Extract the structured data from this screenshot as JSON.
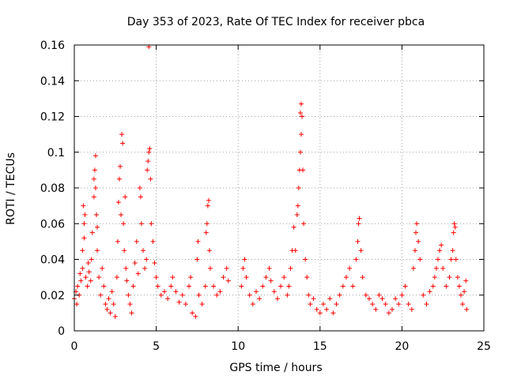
{
  "chart_data": {
    "type": "scatter",
    "title": "Day 353 of 2023, Rate Of TEC Index for receiver pbca",
    "xlabel": "GPS time / hours",
    "ylabel": "ROTI / TECUs",
    "xlim": [
      0,
      25
    ],
    "ylim": [
      0,
      0.16
    ],
    "xticks": [
      0,
      5,
      10,
      15,
      20,
      25
    ],
    "xtick_labels": [
      "0",
      "5",
      "10",
      "15",
      "20",
      "25"
    ],
    "yticks": [
      0,
      0.02,
      0.04,
      0.06,
      0.08,
      0.1,
      0.12,
      0.14,
      0.16
    ],
    "ytick_labels": [
      "0",
      "0.02",
      "0.04",
      "0.06",
      "0.08",
      "0.1",
      "0.12",
      "0.14",
      "0.16"
    ],
    "grid": true,
    "marker": "+",
    "color": "#ff0000",
    "series": [
      {
        "name": "ROTI",
        "points": [
          [
            0.0,
            0.018
          ],
          [
            0.1,
            0.022
          ],
          [
            0.15,
            0.015
          ],
          [
            0.2,
            0.025
          ],
          [
            0.3,
            0.02
          ],
          [
            0.35,
            0.032
          ],
          [
            0.4,
            0.028
          ],
          [
            0.5,
            0.035
          ],
          [
            0.5,
            0.045
          ],
          [
            0.55,
            0.07
          ],
          [
            0.6,
            0.06
          ],
          [
            0.6,
            0.052
          ],
          [
            0.65,
            0.065
          ],
          [
            0.7,
            0.03
          ],
          [
            0.8,
            0.025
          ],
          [
            0.85,
            0.038
          ],
          [
            0.9,
            0.033
          ],
          [
            1.0,
            0.028
          ],
          [
            1.05,
            0.04
          ],
          [
            1.1,
            0.055
          ],
          [
            1.2,
            0.075
          ],
          [
            1.2,
            0.085
          ],
          [
            1.25,
            0.09
          ],
          [
            1.3,
            0.098
          ],
          [
            1.3,
            0.08
          ],
          [
            1.35,
            0.065
          ],
          [
            1.4,
            0.058
          ],
          [
            1.4,
            0.045
          ],
          [
            1.5,
            0.03
          ],
          [
            1.6,
            0.02
          ],
          [
            1.7,
            0.035
          ],
          [
            1.8,
            0.025
          ],
          [
            1.9,
            0.015
          ],
          [
            2.0,
            0.012
          ],
          [
            2.1,
            0.018
          ],
          [
            2.2,
            0.01
          ],
          [
            2.3,
            0.022
          ],
          [
            2.4,
            0.015
          ],
          [
            2.5,
            0.008
          ],
          [
            2.6,
            0.03
          ],
          [
            2.65,
            0.05
          ],
          [
            2.7,
            0.072
          ],
          [
            2.75,
            0.085
          ],
          [
            2.8,
            0.092
          ],
          [
            2.85,
            0.065
          ],
          [
            2.9,
            0.11
          ],
          [
            2.95,
            0.105
          ],
          [
            3.0,
            0.06
          ],
          [
            3.05,
            0.045
          ],
          [
            3.1,
            0.075
          ],
          [
            3.15,
            0.035
          ],
          [
            3.2,
            0.028
          ],
          [
            3.3,
            0.02
          ],
          [
            3.4,
            0.015
          ],
          [
            3.5,
            0.01
          ],
          [
            3.6,
            0.025
          ],
          [
            3.7,
            0.038
          ],
          [
            3.8,
            0.05
          ],
          [
            3.9,
            0.032
          ],
          [
            4.0,
            0.08
          ],
          [
            4.05,
            0.075
          ],
          [
            4.1,
            0.06
          ],
          [
            4.2,
            0.045
          ],
          [
            4.3,
            0.035
          ],
          [
            4.4,
            0.04
          ],
          [
            4.45,
            0.09
          ],
          [
            4.5,
            0.095
          ],
          [
            4.55,
            0.1
          ],
          [
            4.6,
            0.102
          ],
          [
            4.65,
            0.085
          ],
          [
            4.55,
            0.159
          ],
          [
            4.7,
            0.06
          ],
          [
            4.8,
            0.05
          ],
          [
            4.9,
            0.038
          ],
          [
            5.0,
            0.03
          ],
          [
            5.1,
            0.025
          ],
          [
            5.3,
            0.02
          ],
          [
            5.5,
            0.022
          ],
          [
            5.7,
            0.018
          ],
          [
            5.9,
            0.025
          ],
          [
            6.0,
            0.03
          ],
          [
            6.2,
            0.022
          ],
          [
            6.4,
            0.016
          ],
          [
            6.6,
            0.02
          ],
          [
            6.8,
            0.015
          ],
          [
            7.0,
            0.025
          ],
          [
            7.1,
            0.03
          ],
          [
            7.2,
            0.01
          ],
          [
            7.4,
            0.008
          ],
          [
            7.5,
            0.04
          ],
          [
            7.55,
            0.05
          ],
          [
            7.6,
            0.02
          ],
          [
            7.8,
            0.015
          ],
          [
            8.0,
            0.025
          ],
          [
            8.05,
            0.055
          ],
          [
            8.1,
            0.06
          ],
          [
            8.15,
            0.07
          ],
          [
            8.2,
            0.073
          ],
          [
            8.25,
            0.045
          ],
          [
            8.3,
            0.035
          ],
          [
            8.5,
            0.025
          ],
          [
            8.7,
            0.02
          ],
          [
            8.9,
            0.022
          ],
          [
            9.1,
            0.03
          ],
          [
            9.3,
            0.035
          ],
          [
            9.4,
            0.028
          ],
          [
            10.2,
            0.025
          ],
          [
            10.3,
            0.035
          ],
          [
            10.4,
            0.04
          ],
          [
            10.5,
            0.03
          ],
          [
            10.7,
            0.02
          ],
          [
            10.9,
            0.015
          ],
          [
            11.1,
            0.022
          ],
          [
            11.3,
            0.018
          ],
          [
            11.5,
            0.025
          ],
          [
            11.7,
            0.03
          ],
          [
            11.9,
            0.035
          ],
          [
            12.0,
            0.028
          ],
          [
            12.2,
            0.022
          ],
          [
            12.4,
            0.018
          ],
          [
            12.6,
            0.025
          ],
          [
            12.8,
            0.03
          ],
          [
            13.0,
            0.02
          ],
          [
            13.1,
            0.025
          ],
          [
            13.2,
            0.035
          ],
          [
            13.3,
            0.045
          ],
          [
            13.4,
            0.058
          ],
          [
            13.5,
            0.045
          ],
          [
            13.6,
            0.065
          ],
          [
            13.65,
            0.07
          ],
          [
            13.7,
            0.08
          ],
          [
            13.75,
            0.09
          ],
          [
            13.8,
            0.1
          ],
          [
            13.85,
            0.11
          ],
          [
            13.8,
            0.122
          ],
          [
            13.85,
            0.127
          ],
          [
            13.9,
            0.12
          ],
          [
            13.95,
            0.09
          ],
          [
            14.0,
            0.06
          ],
          [
            14.1,
            0.04
          ],
          [
            14.2,
            0.03
          ],
          [
            14.3,
            0.02
          ],
          [
            14.4,
            0.015
          ],
          [
            14.6,
            0.018
          ],
          [
            14.8,
            0.012
          ],
          [
            15.0,
            0.01
          ],
          [
            15.2,
            0.015
          ],
          [
            15.4,
            0.012
          ],
          [
            15.6,
            0.018
          ],
          [
            15.8,
            0.01
          ],
          [
            16.0,
            0.015
          ],
          [
            16.2,
            0.02
          ],
          [
            16.4,
            0.025
          ],
          [
            16.6,
            0.03
          ],
          [
            16.8,
            0.035
          ],
          [
            17.0,
            0.025
          ],
          [
            17.2,
            0.04
          ],
          [
            17.3,
            0.05
          ],
          [
            17.35,
            0.06
          ],
          [
            17.4,
            0.063
          ],
          [
            17.5,
            0.045
          ],
          [
            17.6,
            0.03
          ],
          [
            17.8,
            0.02
          ],
          [
            18.0,
            0.018
          ],
          [
            18.2,
            0.015
          ],
          [
            18.4,
            0.012
          ],
          [
            18.6,
            0.02
          ],
          [
            18.8,
            0.018
          ],
          [
            19.0,
            0.015
          ],
          [
            19.2,
            0.01
          ],
          [
            19.4,
            0.012
          ],
          [
            19.6,
            0.018
          ],
          [
            19.8,
            0.015
          ],
          [
            20.0,
            0.02
          ],
          [
            20.2,
            0.025
          ],
          [
            20.4,
            0.015
          ],
          [
            20.6,
            0.012
          ],
          [
            20.7,
            0.035
          ],
          [
            20.8,
            0.045
          ],
          [
            20.85,
            0.055
          ],
          [
            20.9,
            0.06
          ],
          [
            21.0,
            0.05
          ],
          [
            21.1,
            0.04
          ],
          [
            21.3,
            0.02
          ],
          [
            21.5,
            0.015
          ],
          [
            21.7,
            0.022
          ],
          [
            21.9,
            0.025
          ],
          [
            22.0,
            0.03
          ],
          [
            22.1,
            0.035
          ],
          [
            22.2,
            0.04
          ],
          [
            22.3,
            0.045
          ],
          [
            22.4,
            0.048
          ],
          [
            22.5,
            0.035
          ],
          [
            22.7,
            0.025
          ],
          [
            22.9,
            0.03
          ],
          [
            23.0,
            0.04
          ],
          [
            23.1,
            0.045
          ],
          [
            23.15,
            0.055
          ],
          [
            23.2,
            0.06
          ],
          [
            23.25,
            0.058
          ],
          [
            23.3,
            0.04
          ],
          [
            23.4,
            0.03
          ],
          [
            23.5,
            0.025
          ],
          [
            23.6,
            0.02
          ],
          [
            23.7,
            0.015
          ],
          [
            23.8,
            0.022
          ],
          [
            23.9,
            0.028
          ],
          [
            23.95,
            0.012
          ]
        ]
      }
    ]
  }
}
